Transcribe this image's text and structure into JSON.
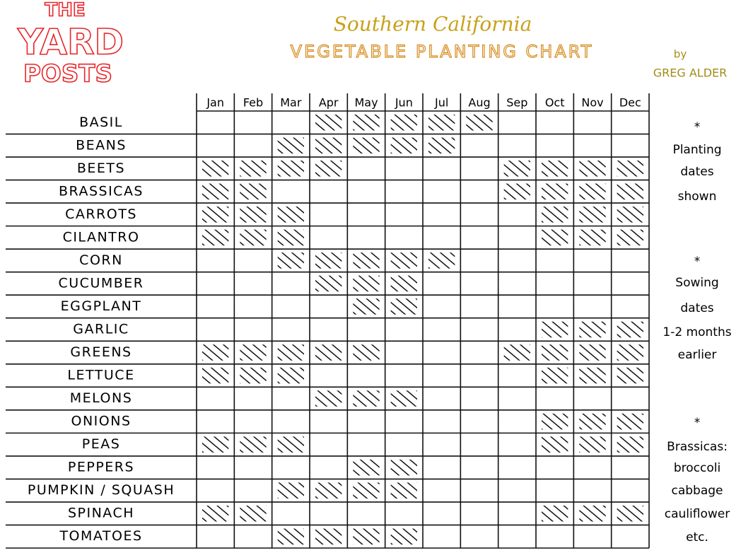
{
  "logo": [
    "THE",
    "YARD",
    "POSTS"
  ],
  "title": {
    "region": "Southern California",
    "main": "VEGETABLE PLANTING CHART",
    "by": "by",
    "author": "GREG ALDER"
  },
  "table": {
    "months": [
      "Jan",
      "Feb",
      "Mar",
      "Apr",
      "May",
      "Jun",
      "Jul",
      "Aug",
      "Sep",
      "Oct",
      "Nov",
      "Dec"
    ],
    "rows": [
      {
        "name": "BASIL",
        "planted": [
          false,
          false,
          false,
          true,
          true,
          true,
          true,
          true,
          false,
          false,
          false,
          false
        ]
      },
      {
        "name": "BEANS",
        "planted": [
          false,
          false,
          true,
          true,
          true,
          true,
          true,
          false,
          false,
          false,
          false,
          false
        ]
      },
      {
        "name": "BEETS",
        "planted": [
          true,
          true,
          true,
          true,
          false,
          false,
          false,
          false,
          true,
          true,
          true,
          true
        ]
      },
      {
        "name": "BRASSICAS",
        "planted": [
          true,
          true,
          false,
          false,
          false,
          false,
          false,
          false,
          true,
          true,
          true,
          true
        ]
      },
      {
        "name": "CARROTS",
        "planted": [
          true,
          true,
          true,
          false,
          false,
          false,
          false,
          false,
          false,
          true,
          true,
          true
        ]
      },
      {
        "name": "CILANTRO",
        "planted": [
          true,
          true,
          true,
          false,
          false,
          false,
          false,
          false,
          false,
          true,
          true,
          true
        ]
      },
      {
        "name": "CORN",
        "planted": [
          false,
          false,
          true,
          true,
          true,
          true,
          true,
          false,
          false,
          false,
          false,
          false
        ]
      },
      {
        "name": "CUCUMBER",
        "planted": [
          false,
          false,
          false,
          true,
          true,
          true,
          false,
          false,
          false,
          false,
          false,
          false
        ]
      },
      {
        "name": "EGGPLANT",
        "planted": [
          false,
          false,
          false,
          false,
          true,
          true,
          false,
          false,
          false,
          false,
          false,
          false
        ]
      },
      {
        "name": "GARLIC",
        "planted": [
          false,
          false,
          false,
          false,
          false,
          false,
          false,
          false,
          false,
          true,
          true,
          true
        ]
      },
      {
        "name": "GREENS",
        "planted": [
          true,
          true,
          true,
          true,
          true,
          false,
          false,
          false,
          true,
          true,
          true,
          true
        ]
      },
      {
        "name": "LETTUCE",
        "planted": [
          true,
          true,
          true,
          false,
          false,
          false,
          false,
          false,
          false,
          true,
          true,
          true
        ]
      },
      {
        "name": "MELONS",
        "planted": [
          false,
          false,
          false,
          true,
          true,
          true,
          false,
          false,
          false,
          false,
          false,
          false
        ]
      },
      {
        "name": "ONIONS",
        "planted": [
          false,
          false,
          false,
          false,
          false,
          false,
          false,
          false,
          false,
          true,
          true,
          true
        ]
      },
      {
        "name": "PEAS",
        "planted": [
          true,
          true,
          true,
          false,
          false,
          false,
          false,
          false,
          false,
          true,
          true,
          true
        ]
      },
      {
        "name": "PEPPERS",
        "planted": [
          false,
          false,
          false,
          false,
          true,
          true,
          false,
          false,
          false,
          false,
          false,
          false
        ]
      },
      {
        "name": "PUMPKIN / SQUASH",
        "planted": [
          false,
          false,
          true,
          true,
          true,
          true,
          false,
          false,
          false,
          false,
          false,
          false
        ]
      },
      {
        "name": "SPINACH",
        "planted": [
          true,
          true,
          false,
          false,
          false,
          false,
          false,
          false,
          false,
          true,
          true,
          true
        ]
      },
      {
        "name": "TOMATOES",
        "planted": [
          false,
          false,
          true,
          true,
          true,
          true,
          false,
          false,
          false,
          false,
          false,
          false
        ]
      }
    ]
  },
  "notes": [
    [
      "*",
      "Planting",
      "dates",
      "shown"
    ],
    [
      "*",
      "Sowing",
      "dates",
      "1-2 months",
      "earlier"
    ],
    [
      "*",
      "Brassicas:",
      "broccoli",
      "cabbage",
      "cauliflower",
      "etc."
    ]
  ]
}
